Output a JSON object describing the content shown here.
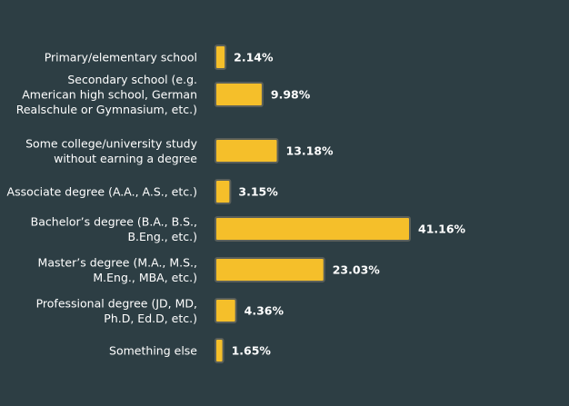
{
  "chart_data": {
    "type": "bar",
    "orientation": "horizontal",
    "categories": [
      "Primary/elementary school",
      "Secondary school (e.g. American high school, German Realschule or Gymnasium, etc.)",
      "Some college/university study without earning a degree",
      "Associate degree (A.A., A.S., etc.)",
      "Bachelor’s degree (B.A., B.S., B.Eng., etc.)",
      "Master’s degree (M.A., M.S., M.Eng., MBA, etc.)",
      "Professional degree (JD, MD, Ph.D, Ed.D, etc.)",
      "Something else"
    ],
    "category_lines": [
      [
        "Primary/elementary school"
      ],
      [
        "Secondary school (e.g.",
        "American high school, German",
        "Realschule or Gymnasium, etc.)"
      ],
      [
        "Some college/university study",
        "without earning a degree"
      ],
      [
        "Associate degree (A.A., A.S., etc.)"
      ],
      [
        "Bachelor’s degree (B.A., B.S.,",
        "B.Eng., etc.)"
      ],
      [
        "Master’s degree (M.A., M.S.,",
        "M.Eng., MBA, etc.)"
      ],
      [
        "Professional degree (JD, MD,",
        "Ph.D, Ed.D, etc.)"
      ],
      [
        "Something else"
      ]
    ],
    "values": [
      2.14,
      9.98,
      13.18,
      3.15,
      41.16,
      23.03,
      4.36,
      1.65
    ],
    "value_labels": [
      "2.14%",
      "9.98%",
      "13.18%",
      "3.15%",
      "41.16%",
      "23.03%",
      "4.36%",
      "1.65%"
    ],
    "title": "",
    "xlabel": "",
    "ylabel": "",
    "xlim": [
      0,
      41.16
    ],
    "grid": false,
    "legend": "none",
    "colors": {
      "background": "#2d3e44",
      "bar": "#f5bf2a",
      "bar_border": "#5a5f5a",
      "text": "#ffffff"
    }
  }
}
